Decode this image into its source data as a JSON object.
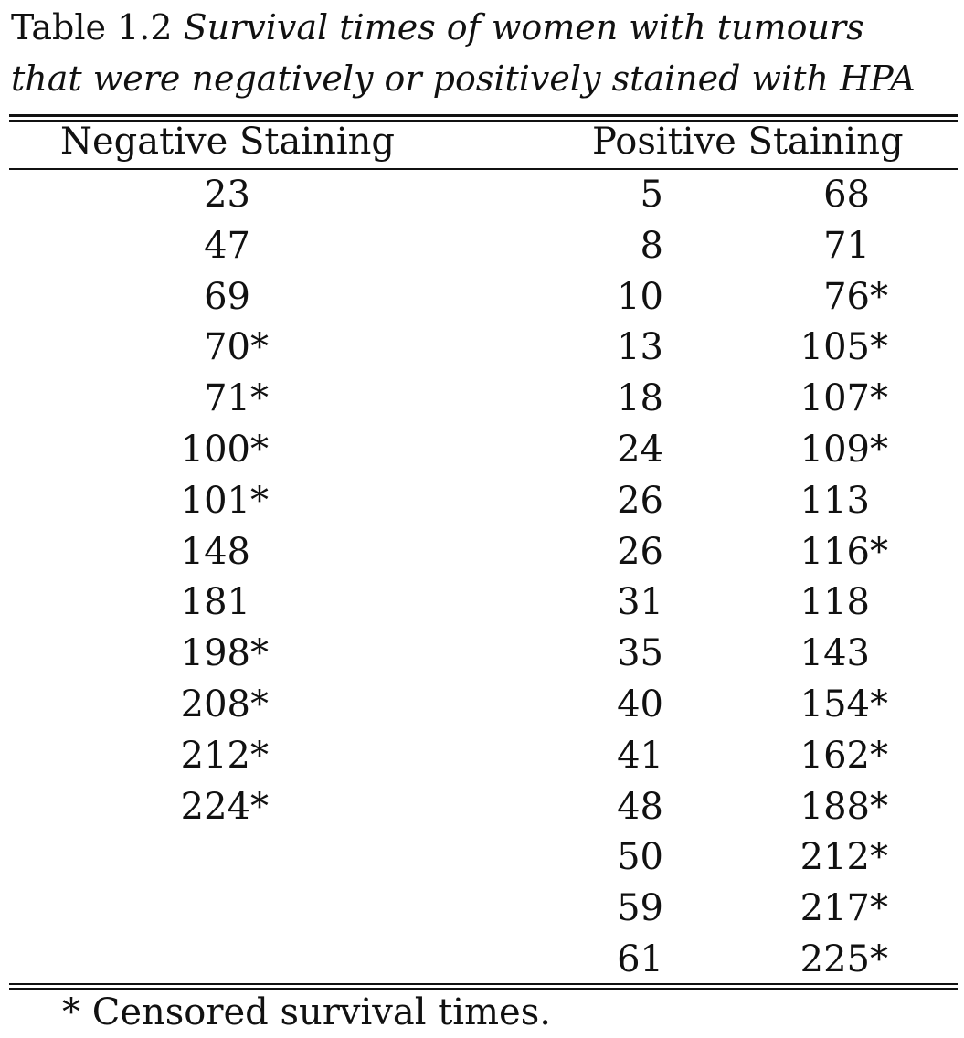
{
  "caption": {
    "label": "Table 1.2",
    "text_line1": "Survival times of women with tumours",
    "text_line2": "that were negatively or positively stained with HPA"
  },
  "table": {
    "headers": {
      "negative": "Negative Staining",
      "positive": "Positive Staining"
    },
    "negative": [
      "23",
      "47",
      "69",
      "70*",
      "71*",
      "100*",
      "101*",
      "148",
      "181",
      "198*",
      "208*",
      "212*",
      "224*"
    ],
    "positive_col1": [
      "5",
      "8",
      "10",
      "13",
      "18",
      "24",
      "26",
      "26",
      "31",
      "35",
      "40",
      "41",
      "48",
      "50",
      "59",
      "61"
    ],
    "positive_col2": [
      "68",
      "71",
      "76*",
      "105*",
      "107*",
      "109*",
      "113",
      "116*",
      "118",
      "143",
      "154*",
      "162*",
      "188*",
      "212*",
      "217*",
      "225*"
    ]
  },
  "footnote": "* Censored survival times."
}
